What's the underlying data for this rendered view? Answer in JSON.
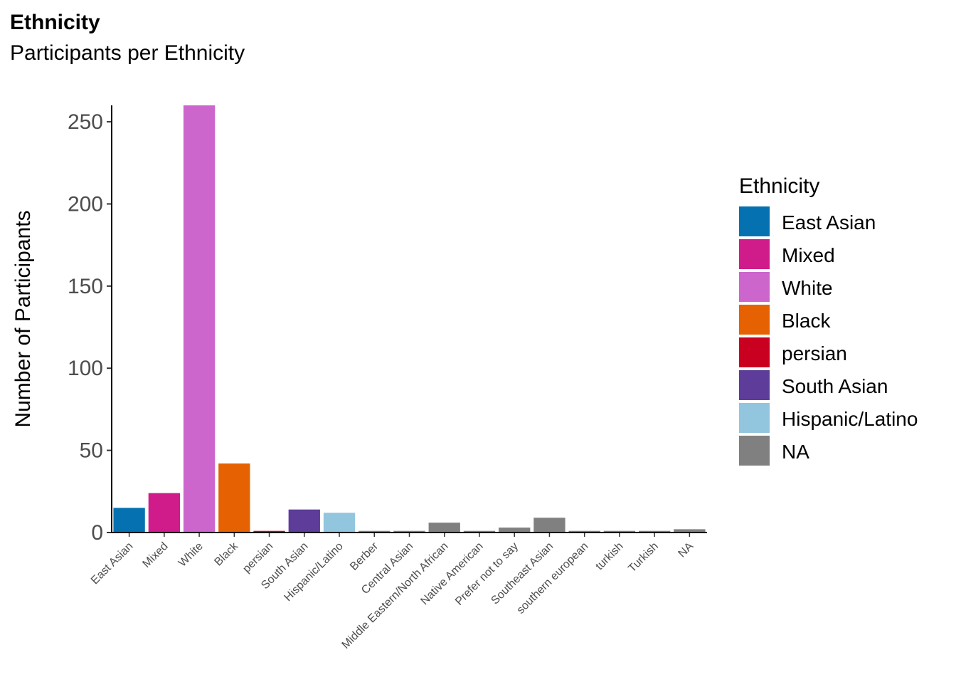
{
  "chart_data": {
    "type": "bar",
    "title": "Ethnicity",
    "subtitle": "Participants per Ethnicity",
    "xlabel": "",
    "ylabel": "Number of Participants",
    "ylim": [
      0,
      260
    ],
    "yticks": [
      0,
      50,
      100,
      150,
      200,
      250
    ],
    "grid": false,
    "categories": [
      "East Asian",
      "Mixed",
      "White",
      "Black",
      "persian",
      "South Asian",
      "Hispanic/Latino",
      "Berber",
      "Central Asian",
      "Middle Eastern/North African",
      "Native American",
      "Prefer not to say",
      "Southeast Asian",
      "southern european",
      "turkish",
      "Turkish",
      "NA"
    ],
    "values": [
      15,
      24,
      260,
      42,
      1,
      14,
      12,
      1,
      1,
      6,
      1,
      3,
      9,
      1,
      1,
      1,
      2
    ],
    "bar_colors": [
      "#0571b0",
      "#d01c8b",
      "#cc66cc",
      "#e66101",
      "#ca0020",
      "#5e3c99",
      "#92c5de",
      "#808080",
      "#808080",
      "#808080",
      "#808080",
      "#808080",
      "#808080",
      "#808080",
      "#808080",
      "#808080",
      "#808080"
    ],
    "legend": {
      "title": "Ethnicity",
      "placement": "right",
      "entries": [
        {
          "label": "East Asian",
          "color": "#0571b0"
        },
        {
          "label": "Mixed",
          "color": "#d01c8b"
        },
        {
          "label": "White",
          "color": "#cc66cc"
        },
        {
          "label": "Black",
          "color": "#e66101"
        },
        {
          "label": "persian",
          "color": "#ca0020"
        },
        {
          "label": "South Asian",
          "color": "#5e3c99"
        },
        {
          "label": "Hispanic/Latino",
          "color": "#92c5de"
        },
        {
          "label": "NA",
          "color": "#808080"
        }
      ]
    }
  }
}
